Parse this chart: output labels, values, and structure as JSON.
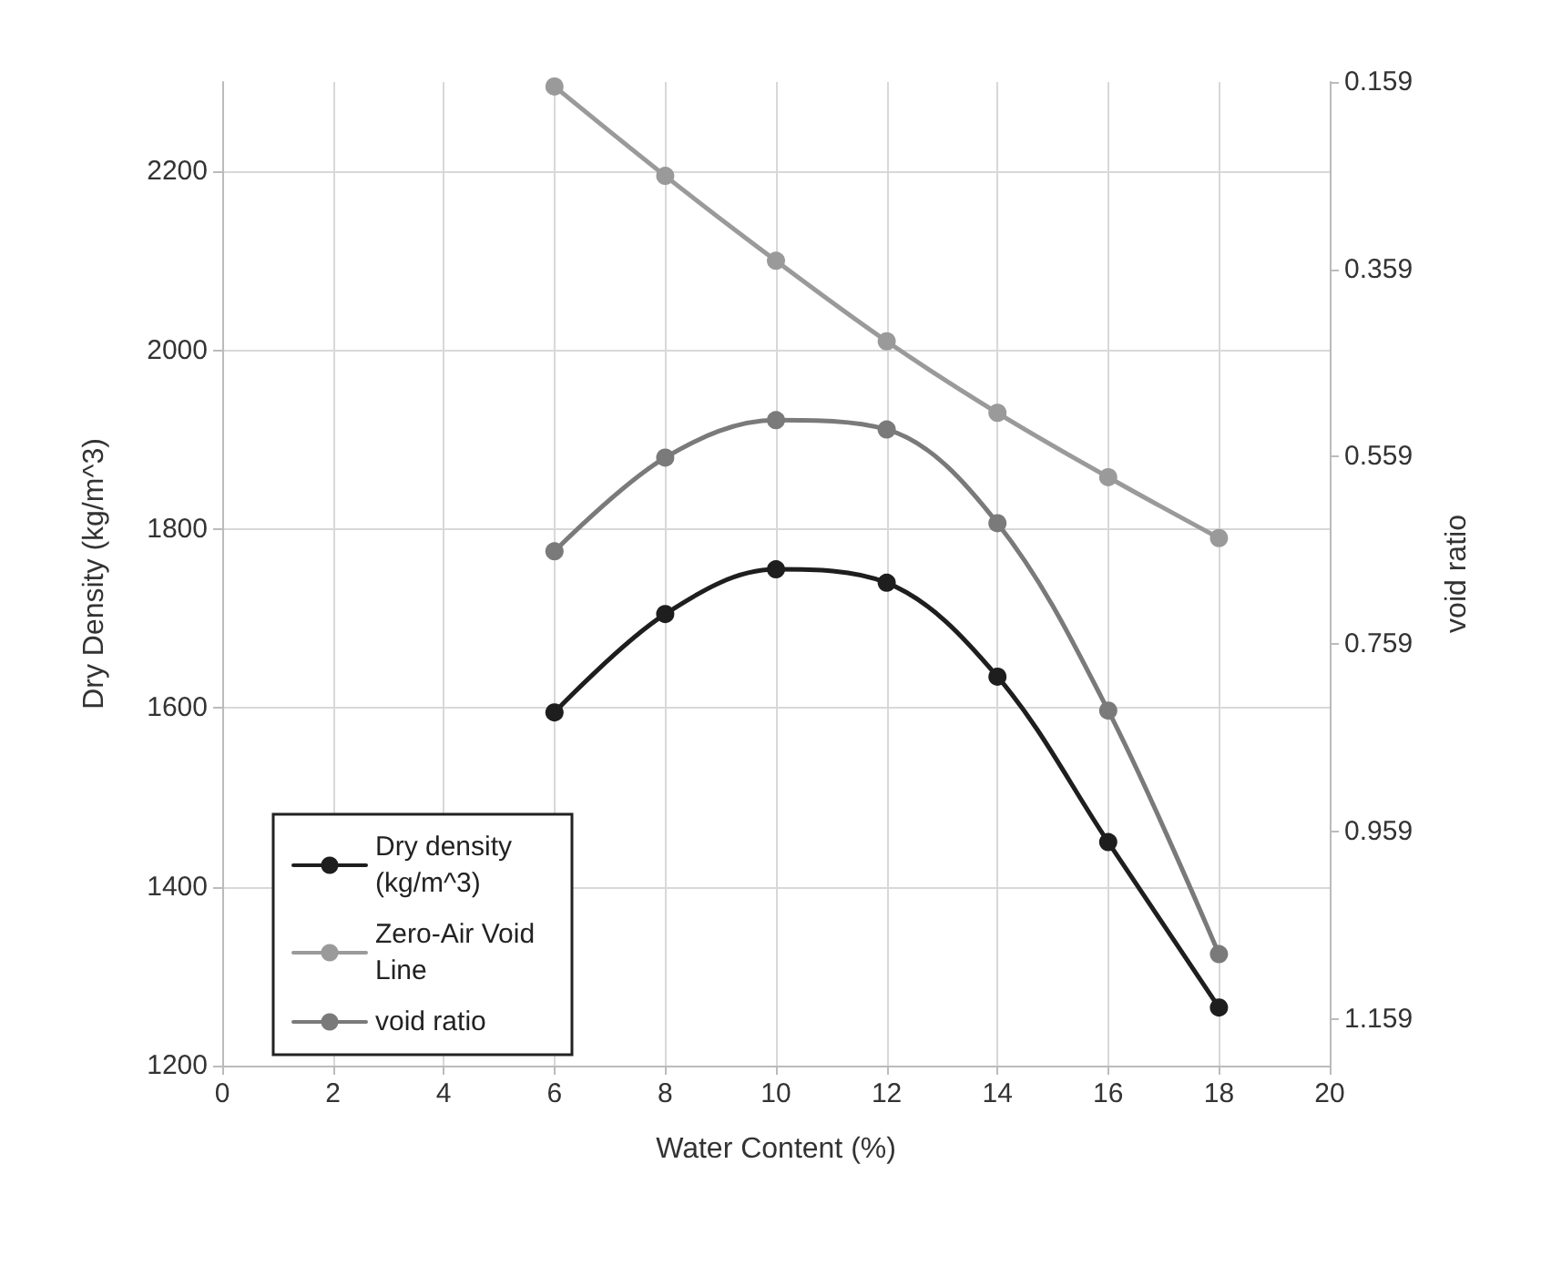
{
  "chart_data": {
    "type": "line",
    "xlabel": "Water Content (%)",
    "ylabel": "Dry Density (kg/m^3)",
    "y2label": "void ratio",
    "x": [
      6,
      8,
      10,
      12,
      14,
      16,
      18
    ],
    "series": [
      {
        "name": "Dry density (kg/m^3)",
        "color": "#1e1e1e",
        "values": [
          1595,
          1705,
          1755,
          1740,
          1635,
          1450,
          1265
        ]
      },
      {
        "name": "Zero-Air Void Line",
        "color": "#9a9a9a",
        "values": [
          2295,
          2195,
          2100,
          2010,
          1930,
          1858,
          1790
        ]
      },
      {
        "name": "void ratio",
        "color": "#7a7a7a",
        "axis": "y2",
        "values": [
          0.66,
          0.56,
          0.52,
          0.53,
          0.63,
          0.83,
          1.09
        ]
      }
    ],
    "xlim": [
      0,
      20
    ],
    "xticks": [
      0,
      2,
      4,
      6,
      8,
      10,
      12,
      14,
      16,
      18,
      20
    ],
    "ylim": [
      1200,
      2300
    ],
    "yticks": [
      1200,
      1400,
      1600,
      1800,
      2000,
      2200
    ],
    "y2lim": [
      1.209,
      0.159
    ],
    "y2ticks": [
      0.159,
      0.359,
      0.559,
      0.759,
      0.959,
      1.159
    ],
    "grid": true,
    "legend": "bottom left",
    "marker": "circle",
    "line_style": "solid"
  }
}
